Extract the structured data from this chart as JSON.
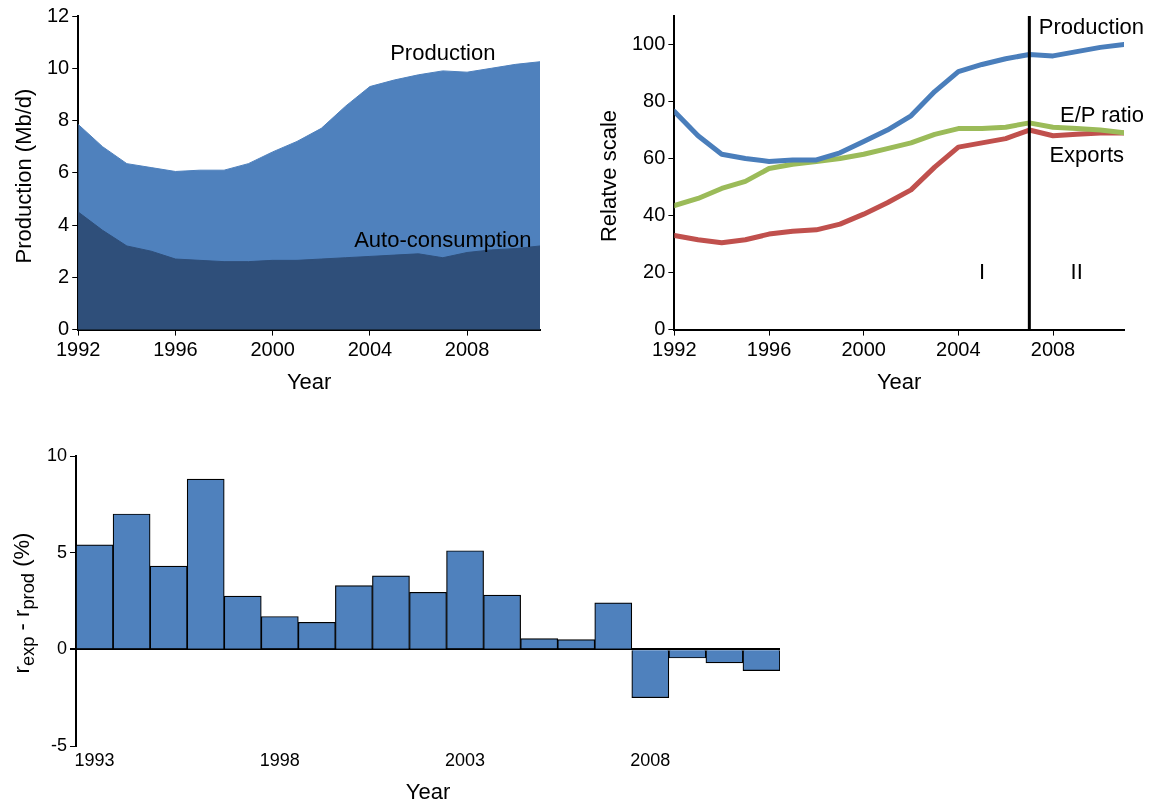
{
  "chart_data": [
    {
      "type": "area",
      "xlabel": "Year",
      "ylabel": "Production (Mb/d)",
      "xlim": [
        1992,
        2011
      ],
      "xticks": [
        1992,
        1996,
        2000,
        2004,
        2008
      ],
      "ylim": [
        0,
        12
      ],
      "yticks": [
        0,
        2,
        4,
        6,
        8,
        10,
        12
      ],
      "x": [
        1992,
        1993,
        1994,
        1995,
        1996,
        1997,
        1998,
        1999,
        2000,
        2001,
        2002,
        2003,
        2004,
        2005,
        2006,
        2007,
        2008,
        2009,
        2010,
        2011
      ],
      "series": [
        {
          "name": "Auto-consumption",
          "color": "#2f4f7a",
          "values": [
            4.5,
            3.8,
            3.2,
            3.0,
            2.7,
            2.65,
            2.6,
            2.6,
            2.65,
            2.65,
            2.7,
            2.75,
            2.8,
            2.85,
            2.9,
            2.75,
            2.95,
            3.05,
            3.1,
            3.2
          ]
        },
        {
          "name": "Production",
          "color": "#4f81bd",
          "values": [
            7.85,
            7.0,
            6.35,
            6.2,
            6.05,
            6.1,
            6.1,
            6.35,
            6.8,
            7.2,
            7.7,
            8.55,
            9.3,
            9.55,
            9.75,
            9.9,
            9.85,
            10.0,
            10.15,
            10.25
          ]
        }
      ]
    },
    {
      "type": "line",
      "xlabel": "Year",
      "ylabel": "Relatve scale",
      "xlim": [
        1992,
        2011
      ],
      "xticks": [
        1992,
        1996,
        2000,
        2004,
        2008
      ],
      "ylim": [
        0,
        110
      ],
      "yticks": [
        0,
        20,
        40,
        60,
        80,
        100
      ],
      "x": [
        1992,
        1993,
        1994,
        1995,
        1996,
        1997,
        1998,
        1999,
        2000,
        2001,
        2002,
        2003,
        2004,
        2005,
        2006,
        2007,
        2008,
        2009,
        2010,
        2011
      ],
      "series": [
        {
          "name": "Production",
          "color": "#4a7ebb",
          "values": [
            76.5,
            68,
            61.5,
            60,
            59,
            59.5,
            59.5,
            62,
            66,
            70,
            75,
            83.5,
            90.5,
            93,
            95,
            96.5,
            96,
            97.5,
            99,
            100
          ]
        },
        {
          "name": "E/P ratio",
          "color": "#9bbb59",
          "values": [
            43.5,
            46,
            49.5,
            52,
            56.5,
            58,
            59,
            60,
            61.5,
            63.5,
            65.5,
            68.5,
            70.5,
            70.5,
            71,
            72.5,
            71,
            70.5,
            70,
            69
          ]
        },
        {
          "name": "Exports",
          "color": "#c0504d",
          "values": [
            33,
            31.5,
            30.5,
            31.5,
            33.5,
            34.5,
            35,
            37,
            40.5,
            44.5,
            49,
            57,
            64,
            65.5,
            67,
            70,
            68,
            68.5,
            69,
            69
          ]
        }
      ],
      "ref_lines": [
        {
          "axis": "x",
          "value": 2007,
          "color": "#000000"
        }
      ],
      "annotations": [
        "I",
        "II"
      ]
    },
    {
      "type": "bar",
      "xlabel": "Year",
      "ylabel": "r$_{exp}$ - r$_{prod}$ (%)",
      "ylim": [
        -5,
        10
      ],
      "yticks": [
        -5,
        0,
        5,
        10
      ],
      "categories": [
        "1993",
        null,
        null,
        null,
        null,
        "1998",
        null,
        null,
        null,
        null,
        "2003",
        null,
        null,
        null,
        null,
        "2008",
        null,
        null,
        null
      ],
      "color": "#4f81bd",
      "values": [
        5.4,
        7.0,
        4.3,
        8.8,
        2.75,
        1.7,
        1.4,
        3.3,
        3.8,
        2.95,
        5.1,
        2.8,
        0.55,
        0.5,
        2.4,
        -2.5,
        -0.45,
        -0.7,
        -1.1
      ]
    }
  ]
}
